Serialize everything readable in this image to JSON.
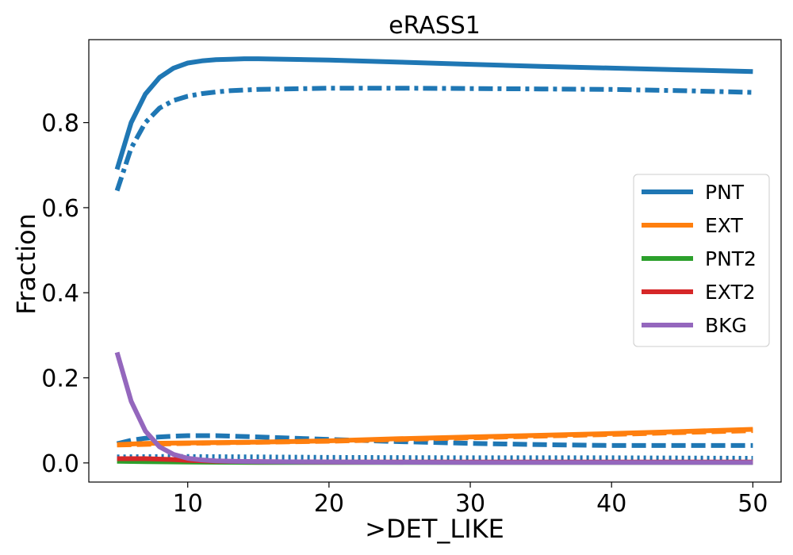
{
  "chart_data": {
    "type": "line",
    "title": "eRASS1",
    "xlabel": ">DET_LIKE",
    "ylabel": "Fraction",
    "xlim": [
      3,
      52
    ],
    "ylim": [
      -0.045,
      0.995
    ],
    "xticks": [
      10,
      20,
      30,
      40,
      50
    ],
    "xtick_labels": [
      "10",
      "20",
      "30",
      "40",
      "50"
    ],
    "yticks": [
      0.0,
      0.2,
      0.4,
      0.6,
      0.8
    ],
    "ytick_labels": [
      "0.0",
      "0.2",
      "0.4",
      "0.6",
      "0.8"
    ],
    "grid": false,
    "legend_position": "center-right",
    "legend": [
      {
        "name": "PNT",
        "color": "#1f77b4"
      },
      {
        "name": "EXT",
        "color": "#ff7f0e"
      },
      {
        "name": "PNT2",
        "color": "#2ca02c"
      },
      {
        "name": "EXT2",
        "color": "#d62728"
      },
      {
        "name": "BKG",
        "color": "#9467bd"
      }
    ],
    "series": [
      {
        "color": "#1f77b4",
        "style": "solid",
        "x": [
          5,
          6,
          7,
          8,
          9,
          10,
          11,
          12,
          13,
          14,
          15,
          20,
          25,
          30,
          35,
          40,
          45,
          50
        ],
        "y": [
          0.69,
          0.8,
          0.867,
          0.906,
          0.928,
          0.94,
          0.945,
          0.948,
          0.949,
          0.95,
          0.95,
          0.947,
          0.942,
          0.937,
          0.932,
          0.928,
          0.924,
          0.92
        ]
      },
      {
        "color": "#1f77b4",
        "style": "dashdot",
        "x": [
          5,
          6,
          7,
          8,
          9,
          10,
          11,
          12,
          13,
          15,
          20,
          25,
          30,
          35,
          40,
          45,
          50
        ],
        "y": [
          0.64,
          0.74,
          0.8,
          0.834,
          0.852,
          0.862,
          0.868,
          0.872,
          0.875,
          0.878,
          0.881,
          0.881,
          0.88,
          0.879,
          0.878,
          0.875,
          0.871
        ]
      },
      {
        "color": "#1f77b4",
        "style": "dashed",
        "x": [
          5,
          6,
          7,
          8,
          9,
          10,
          12,
          15,
          20,
          25,
          30,
          35,
          40,
          45,
          50
        ],
        "y": [
          0.045,
          0.053,
          0.058,
          0.061,
          0.063,
          0.064,
          0.064,
          0.061,
          0.055,
          0.05,
          0.046,
          0.043,
          0.041,
          0.041,
          0.041
        ]
      },
      {
        "color": "#1f77b4",
        "style": "dotted",
        "x": [
          5,
          8,
          10,
          15,
          20,
          30,
          40,
          50
        ],
        "y": [
          0.014,
          0.015,
          0.015,
          0.014,
          0.013,
          0.012,
          0.012,
          0.011
        ]
      },
      {
        "color": "#ff7f0e",
        "style": "solid",
        "x": [
          5,
          7,
          10,
          15,
          20,
          25,
          30,
          35,
          40,
          45,
          50
        ],
        "y": [
          0.043,
          0.046,
          0.047,
          0.049,
          0.052,
          0.057,
          0.061,
          0.065,
          0.069,
          0.074,
          0.079
        ]
      },
      {
        "color": "#ff7f0e",
        "style": "dashed",
        "x": [
          5,
          10,
          20,
          30,
          40,
          50
        ],
        "y": [
          0.042,
          0.046,
          0.051,
          0.059,
          0.067,
          0.076
        ]
      },
      {
        "color": "#2ca02c",
        "style": "solid",
        "x": [
          5,
          7,
          10,
          15,
          20,
          50
        ],
        "y": [
          0.004,
          0.003,
          0.002,
          0.001,
          0.001,
          0.001
        ]
      },
      {
        "color": "#d62728",
        "style": "solid",
        "x": [
          5,
          7,
          9,
          10,
          12,
          15,
          20,
          50
        ],
        "y": [
          0.01,
          0.01,
          0.008,
          0.006,
          0.004,
          0.003,
          0.002,
          0.002
        ]
      },
      {
        "color": "#9467bd",
        "style": "solid",
        "x": [
          5,
          6,
          7,
          8,
          9,
          10,
          11,
          12,
          13,
          15,
          20,
          30,
          40,
          50
        ],
        "y": [
          0.26,
          0.145,
          0.075,
          0.038,
          0.02,
          0.011,
          0.007,
          0.005,
          0.004,
          0.003,
          0.002,
          0.001,
          0.001,
          0.001
        ]
      }
    ]
  }
}
